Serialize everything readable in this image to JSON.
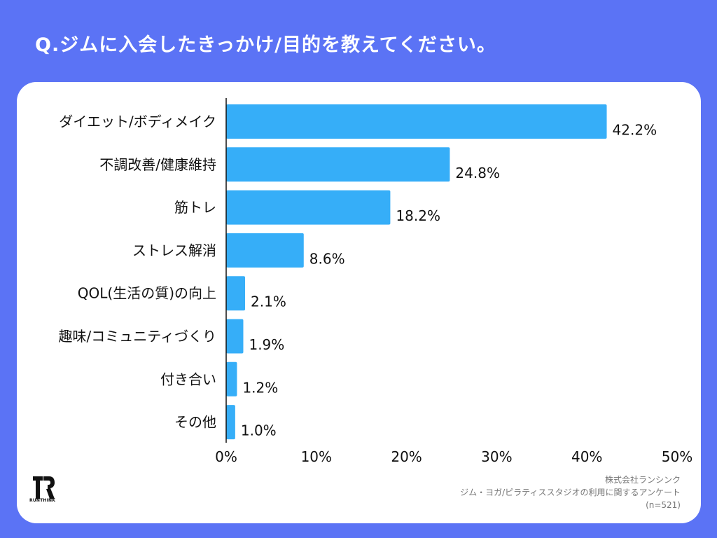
{
  "header": {
    "title": "Q.ジムに入会したきっかけ/目的を教えてください。"
  },
  "colors": {
    "background": "#5b73f5",
    "bar": "#36aef8",
    "card": "#ffffff"
  },
  "chart_data": {
    "type": "bar",
    "orientation": "horizontal",
    "title": "Q.ジムに入会したきっかけ/目的を教えてください。",
    "categories": [
      "ダイエット/ボディメイク",
      "不調改善/健康維持",
      "筋トレ",
      "ストレス解消",
      "QOL(生活の質)の向上",
      "趣味/コミュニティづくり",
      "付き合い",
      "その他"
    ],
    "values": [
      42.2,
      24.8,
      18.2,
      8.6,
      2.1,
      1.9,
      1.2,
      1.0
    ],
    "value_labels": [
      "42.2%",
      "24.8%",
      "18.2%",
      "8.6%",
      "2.1%",
      "1.9%",
      "1.2%",
      "1.0%"
    ],
    "xlim": [
      0,
      50
    ],
    "ticks": [
      0,
      10,
      20,
      30,
      40,
      50
    ],
    "tick_labels": [
      "0%",
      "10%",
      "20%",
      "30%",
      "40%",
      "50%"
    ],
    "xlabel": "",
    "ylabel": "",
    "grid": false,
    "legend": "none"
  },
  "logo": {
    "mark": "TR",
    "name": "RUNTHINK"
  },
  "source": {
    "company": "株式会社ランシンク",
    "survey": "ジム・ヨガ/ピラティススタジオの利用に関するアンケート",
    "sample": "(n=521)"
  }
}
